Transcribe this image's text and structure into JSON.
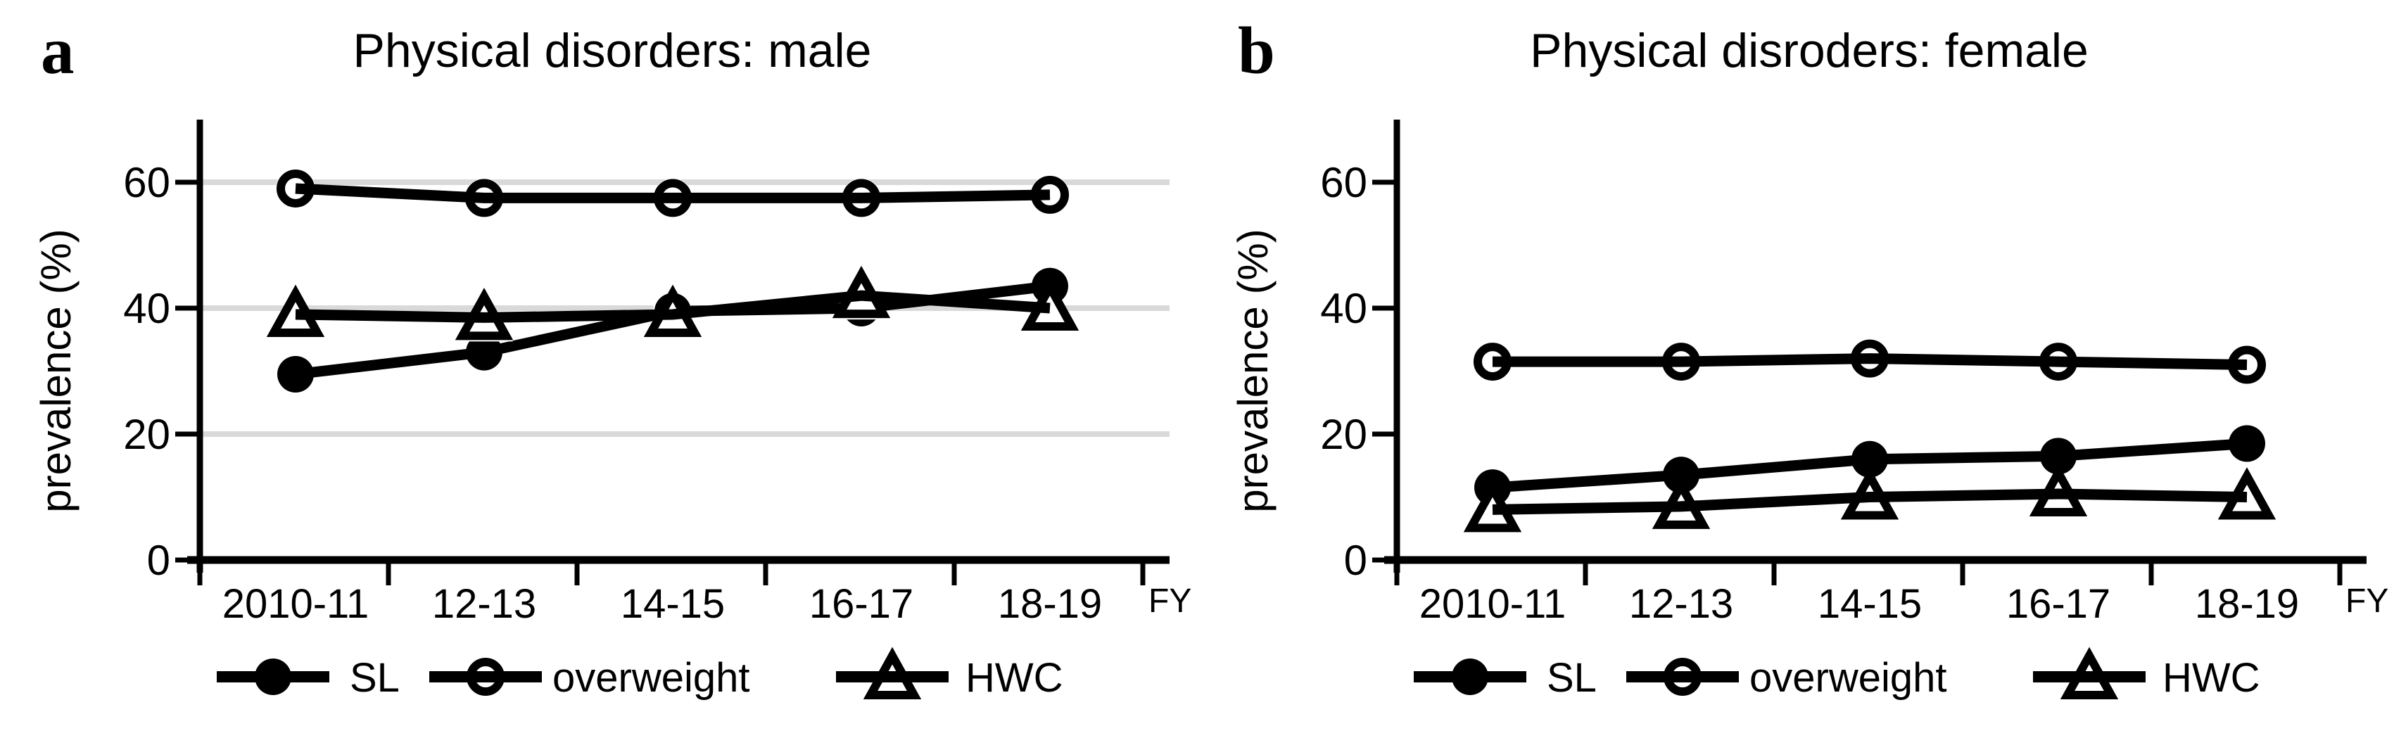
{
  "figure_background": "#ffffff",
  "ink_color": "#000000",
  "grid_color": "#d9d9d9",
  "chart_data": [
    {
      "type": "line",
      "panel_label": "a",
      "title": "Physical disorders: male",
      "ylabel": "prevalence (%)",
      "x_axis_unit": "FY",
      "categories": [
        "2010-11",
        "12-13",
        "14-15",
        "16-17",
        "18-19"
      ],
      "ytick_labels": [
        "0",
        "20",
        "40",
        "60"
      ],
      "yticks": [
        0,
        20,
        40,
        60
      ],
      "ylim": [
        0,
        68
      ],
      "grid_visible": true,
      "grid_values": [
        20,
        40,
        60
      ],
      "legend_position": "bottom",
      "series": [
        {
          "name": "SL",
          "marker": "filled-circle",
          "values": [
            29.5,
            33,
            39.5,
            40,
            43.5
          ]
        },
        {
          "name": "overweight",
          "marker": "open-circle",
          "values": [
            59,
            57.5,
            57.5,
            57.5,
            58
          ]
        },
        {
          "name": "HWC",
          "marker": "open-triangle",
          "values": [
            39,
            38.5,
            39,
            42,
            40
          ]
        }
      ]
    },
    {
      "type": "line",
      "panel_label": "b",
      "title": "Physical disroders: female",
      "ylabel": "prevalence (%)",
      "x_axis_unit": "FY",
      "categories": [
        "2010-11",
        "12-13",
        "14-15",
        "16-17",
        "18-19"
      ],
      "ytick_labels": [
        "0",
        "20",
        "40",
        "60"
      ],
      "yticks": [
        0,
        20,
        40,
        60
      ],
      "ylim": [
        0,
        68
      ],
      "grid_visible": false,
      "grid_values": [],
      "legend_position": "bottom",
      "series": [
        {
          "name": "SL",
          "marker": "filled-circle",
          "values": [
            11.5,
            13.5,
            16,
            16.5,
            18.5
          ]
        },
        {
          "name": "overweight",
          "marker": "open-circle",
          "values": [
            31.5,
            31.5,
            32,
            31.5,
            31
          ]
        },
        {
          "name": "HWC",
          "marker": "open-triangle",
          "values": [
            8,
            8.5,
            10,
            10.5,
            10
          ]
        }
      ]
    }
  ]
}
